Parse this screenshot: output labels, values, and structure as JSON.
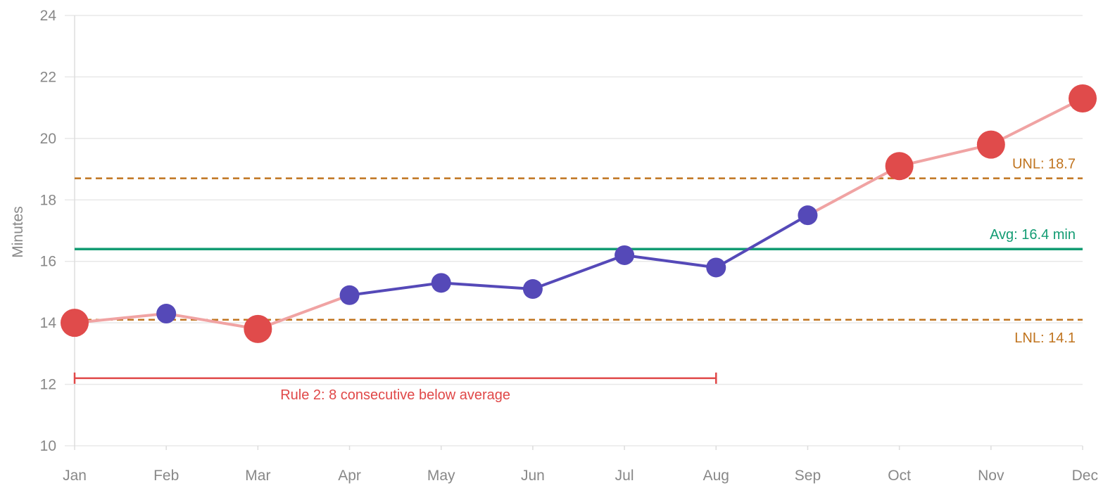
{
  "chart_data": {
    "type": "line",
    "xlabel": "",
    "ylabel": "Minutes",
    "ylim": [
      10,
      24
    ],
    "yticks": [
      "10",
      "12",
      "14",
      "16",
      "18",
      "20",
      "22",
      "24"
    ],
    "grid": true,
    "categories": [
      "Jan",
      "Feb",
      "Mar",
      "Apr",
      "May",
      "Jun",
      "Jul",
      "Aug",
      "Sep",
      "Oct",
      "Nov",
      "Dec"
    ],
    "series": [
      {
        "values": [
          14.0,
          14.3,
          13.8,
          14.9,
          15.3,
          15.1,
          16.2,
          15.8,
          17.5,
          19.1,
          19.8,
          21.3
        ],
        "flagged": [
          true,
          false,
          true,
          false,
          false,
          false,
          false,
          false,
          false,
          true,
          true,
          true
        ]
      }
    ],
    "reference_lines": [
      {
        "label": "UNL: 18.7",
        "value": 18.7,
        "style": "dashed",
        "color": "#c0741f"
      },
      {
        "label": "Avg: 16.4 min",
        "value": 16.4,
        "style": "solid",
        "color": "#139c73"
      },
      {
        "label": "LNL: 14.1",
        "value": 14.1,
        "style": "dashed",
        "color": "#c0741f"
      }
    ],
    "annotations": [
      {
        "text": "Rule 2: 8 consecutive below average",
        "from": "Jan",
        "to": "Aug",
        "value": 12.2,
        "color": "#e04848"
      }
    ],
    "colors": {
      "normal_point": "#5549b8",
      "normal_line": "#5549b8",
      "flag_point": "#e04b4b",
      "flag_line": "#f0a3a3",
      "grid": "#e8e8e8"
    }
  }
}
